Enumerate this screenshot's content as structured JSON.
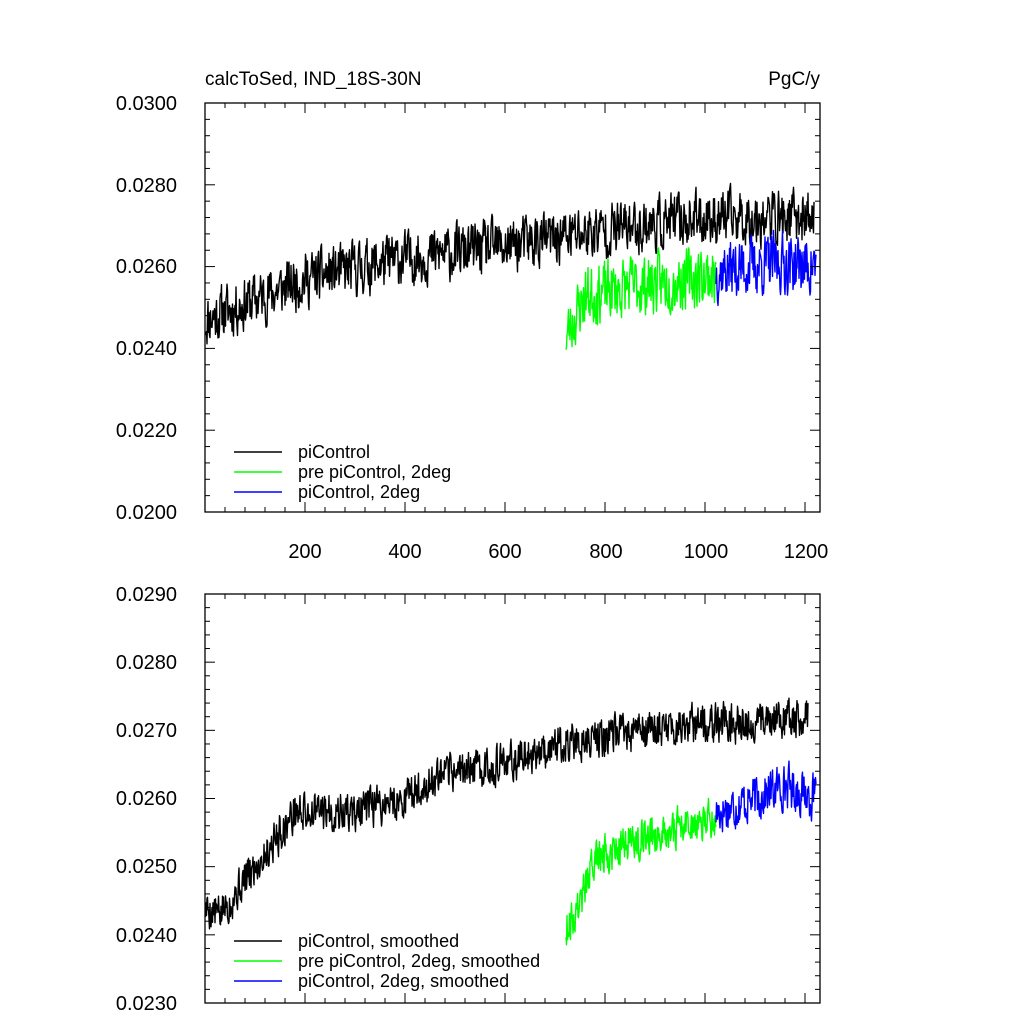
{
  "chart_data": [
    {
      "type": "line",
      "title": "calcToSed, IND_18S-30N",
      "units": "PgC/y",
      "xlim": [
        0,
        1230
      ],
      "ylim": [
        0.02,
        0.03
      ],
      "x_ticks": [
        200,
        400,
        600,
        800,
        1000,
        1200
      ],
      "x_tick_labels": [
        "200",
        "400",
        "600",
        "800",
        "1000",
        "1200"
      ],
      "y_ticks": [
        0.02,
        0.022,
        0.024,
        0.026,
        0.028,
        0.03
      ],
      "y_tick_labels": [
        "0.0200",
        "0.0220",
        "0.0240",
        "0.0260",
        "0.0280",
        "0.0300"
      ],
      "legend_position": "bottom-left",
      "series": [
        {
          "name": "piControl",
          "color": "#000000",
          "x_start": 1,
          "x_end": 1218,
          "trend": [
            [
              1,
              0.0247
            ],
            [
              200,
              0.0257
            ],
            [
              400,
              0.0262
            ],
            [
              600,
              0.0265
            ],
            [
              800,
              0.0269
            ],
            [
              1000,
              0.0272
            ],
            [
              1218,
              0.0272
            ]
          ],
          "spread": 0.0009,
          "seed": 11
        },
        {
          "name": "pre piControl, 2deg",
          "color": "#00ff00",
          "x_start": 722,
          "x_end": 1022,
          "trend": [
            [
              722,
              0.0243
            ],
            [
              760,
              0.0253
            ],
            [
              850,
              0.0255
            ],
            [
              1022,
              0.0258
            ]
          ],
          "spread": 0.001,
          "seed": 23
        },
        {
          "name": "piControl, 2deg",
          "color": "#0000ff",
          "x_start": 1022,
          "x_end": 1222,
          "trend": [
            [
              1022,
              0.0259
            ],
            [
              1150,
              0.0261
            ],
            [
              1222,
              0.026
            ]
          ],
          "spread": 0.001,
          "seed": 37
        }
      ]
    },
    {
      "type": "line",
      "title": "",
      "xlim": [
        0,
        1230
      ],
      "ylim": [
        0.023,
        0.029
      ],
      "x_ticks": [
        200,
        400,
        600,
        800,
        1000,
        1200
      ],
      "y_ticks": [
        0.023,
        0.024,
        0.025,
        0.026,
        0.027,
        0.028,
        0.029
      ],
      "y_tick_labels": [
        "0.0230",
        "0.0240",
        "0.0250",
        "0.0260",
        "0.0270",
        "0.0280",
        "0.0290"
      ],
      "legend_position": "bottom-left",
      "series": [
        {
          "name": "piControl, smoothed",
          "color": "#000000",
          "x_start": 1,
          "x_end": 1206,
          "trend": [
            [
              1,
              0.0244
            ],
            [
              30,
              0.0243
            ],
            [
              100,
              0.025
            ],
            [
              180,
              0.0258
            ],
            [
              300,
              0.0258
            ],
            [
              400,
              0.026
            ],
            [
              500,
              0.0264
            ],
            [
              600,
              0.0265
            ],
            [
              700,
              0.0268
            ],
            [
              800,
              0.0269
            ],
            [
              900,
              0.027
            ],
            [
              1000,
              0.0271
            ],
            [
              1100,
              0.0271
            ],
            [
              1206,
              0.0272
            ]
          ],
          "spread": 0.0004,
          "seed": 5
        },
        {
          "name": "pre piControl, 2deg, smoothed",
          "color": "#00ff00",
          "x_start": 722,
          "x_end": 1022,
          "trend": [
            [
              722,
              0.0241
            ],
            [
              740,
              0.0243
            ],
            [
              780,
              0.0251
            ],
            [
              850,
              0.0254
            ],
            [
              1022,
              0.0257
            ]
          ],
          "spread": 0.0004,
          "seed": 9
        },
        {
          "name": "piControl, 2deg, smoothed",
          "color": "#0000ff",
          "x_start": 1022,
          "x_end": 1222,
          "trend": [
            [
              1022,
              0.0258
            ],
            [
              1100,
              0.026
            ],
            [
              1160,
              0.0262
            ],
            [
              1222,
              0.026
            ]
          ],
          "spread": 0.00045,
          "seed": 17
        }
      ]
    }
  ]
}
